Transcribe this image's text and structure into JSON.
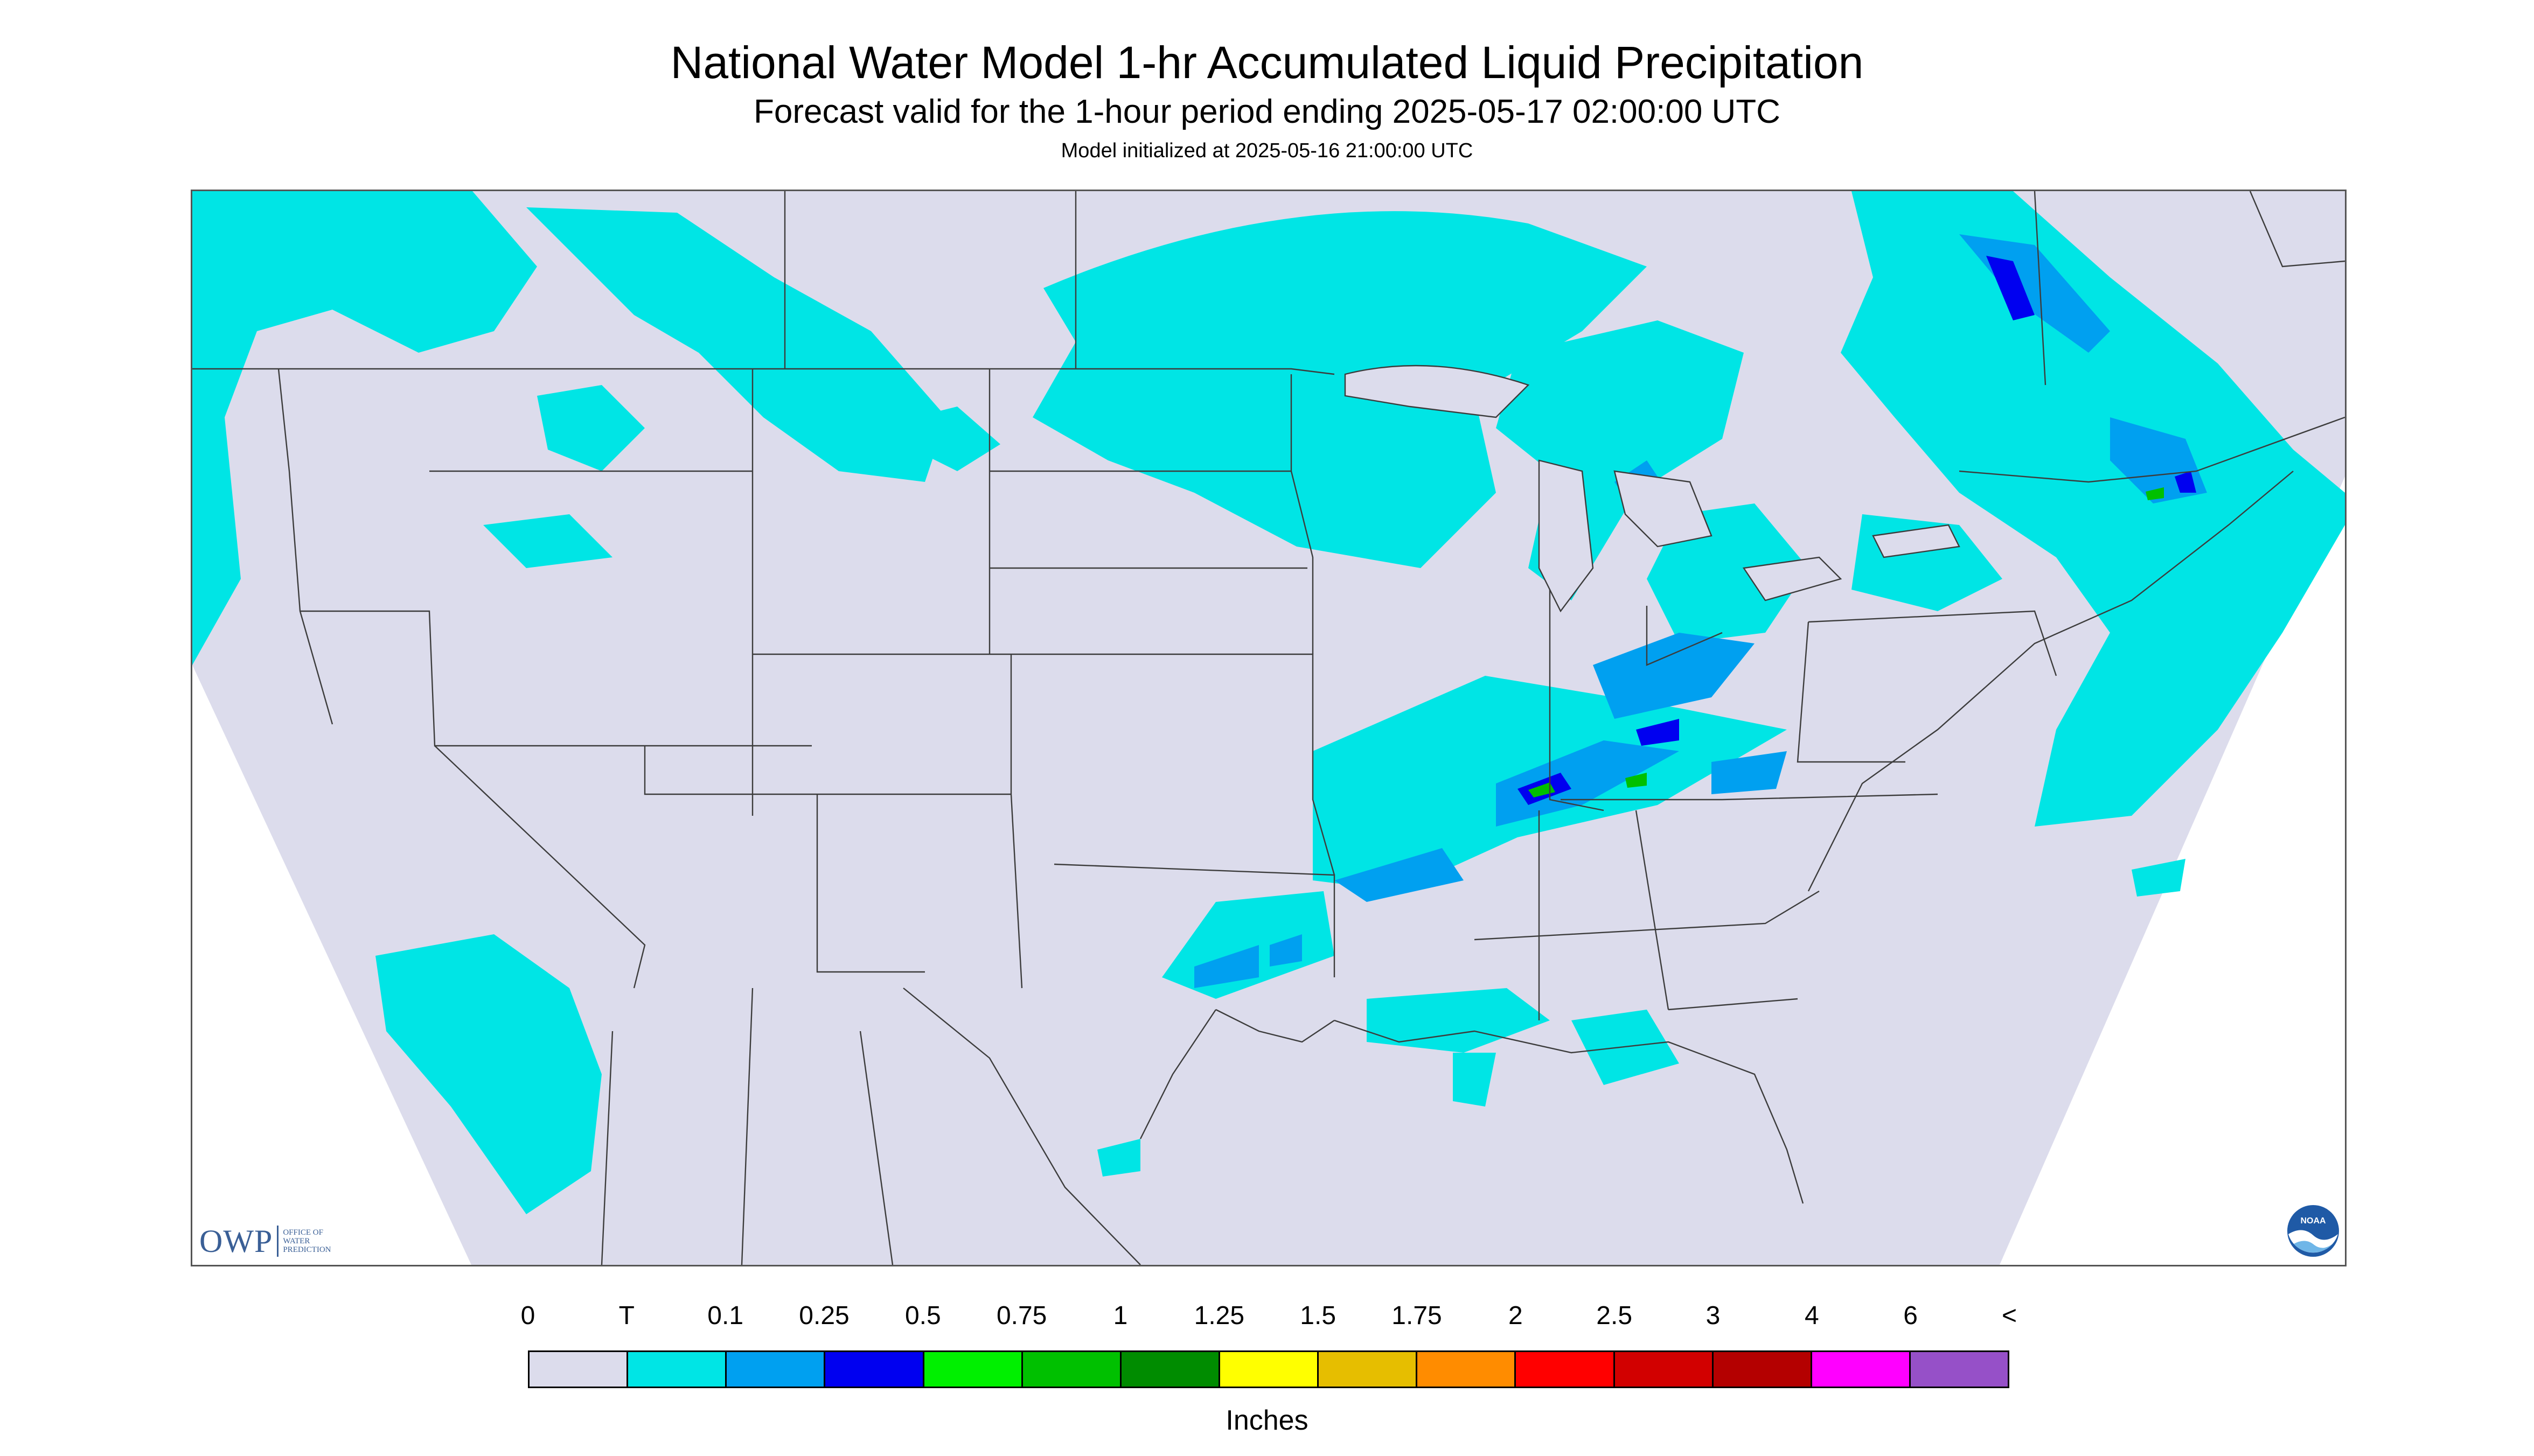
{
  "header": {
    "title": "National Water Model 1-hr Accumulated Liquid Precipitation",
    "subtitle": "Forecast valid for the 1-hour period ending 2025-05-17 02:00:00 UTC",
    "init": "Model initialized at 2025-05-16 21:00:00 UTC"
  },
  "logos": {
    "owp_mark": "OWP",
    "owp_text": [
      "OFFICE OF",
      "WATER",
      "PREDICTION"
    ],
    "noaa_text": "NOAA"
  },
  "legend": {
    "labels": [
      "0",
      "T",
      "0.1",
      "0.25",
      "0.5",
      "0.75",
      "1",
      "1.25",
      "1.5",
      "1.75",
      "2",
      "2.5",
      "3",
      "4",
      "6",
      "<"
    ],
    "colors": [
      "#dcdcec",
      "#00e5e5",
      "#00a0f0",
      "#0000f0",
      "#00f000",
      "#00c000",
      "#008c00",
      "#ffff00",
      "#e6be00",
      "#ff8c00",
      "#ff0000",
      "#d20000",
      "#b40000",
      "#ff00ff",
      "#9650c8"
    ],
    "units": "Inches"
  },
  "map": {
    "background_color": "#dcdcec",
    "border_color": "#3c3c3c"
  }
}
